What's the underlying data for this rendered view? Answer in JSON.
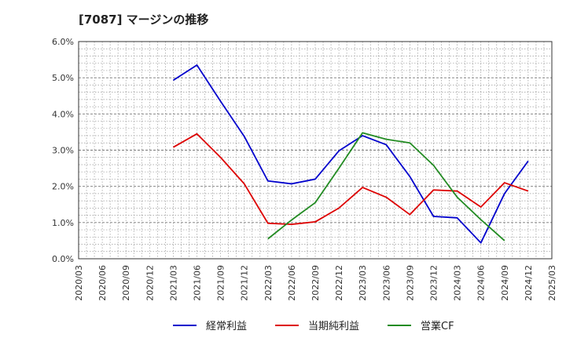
{
  "chart_data": {
    "type": "line",
    "title": "[7087]  マージンの推移",
    "xlabel": "",
    "ylabel": "",
    "x": [
      "2020/03",
      "2020/06",
      "2020/09",
      "2020/12",
      "2021/03",
      "2021/06",
      "2021/09",
      "2021/12",
      "2022/03",
      "2022/06",
      "2022/09",
      "2022/12",
      "2023/03",
      "2023/06",
      "2023/09",
      "2023/12",
      "2024/03",
      "2024/06",
      "2024/09",
      "2024/12",
      "2025/03"
    ],
    "ylim": [
      0,
      6
    ],
    "yticks": [
      "0.0%",
      "1.0%",
      "2.0%",
      "3.0%",
      "4.0%",
      "5.0%",
      "6.0%"
    ],
    "grid": true,
    "legend_position": "bottom",
    "series": [
      {
        "name": "経常利益",
        "color": "#0000cc",
        "values": [
          null,
          null,
          null,
          null,
          4.93,
          5.35,
          4.35,
          3.38,
          2.15,
          2.07,
          2.2,
          2.98,
          3.4,
          3.15,
          2.27,
          1.17,
          1.13,
          0.44,
          1.8,
          2.7,
          null
        ]
      },
      {
        "name": "当期純利益",
        "color": "#dd0000",
        "values": [
          null,
          null,
          null,
          null,
          3.08,
          3.45,
          2.8,
          2.07,
          0.98,
          0.95,
          1.02,
          1.4,
          1.97,
          1.7,
          1.22,
          1.9,
          1.87,
          1.43,
          2.1,
          1.87,
          null
        ]
      },
      {
        "name": "営業CF",
        "color": "#228b22",
        "values": [
          null,
          null,
          null,
          null,
          null,
          null,
          null,
          null,
          0.55,
          1.07,
          1.55,
          2.5,
          3.48,
          3.3,
          3.2,
          2.58,
          1.7,
          1.08,
          0.5,
          null,
          null
        ]
      }
    ]
  }
}
